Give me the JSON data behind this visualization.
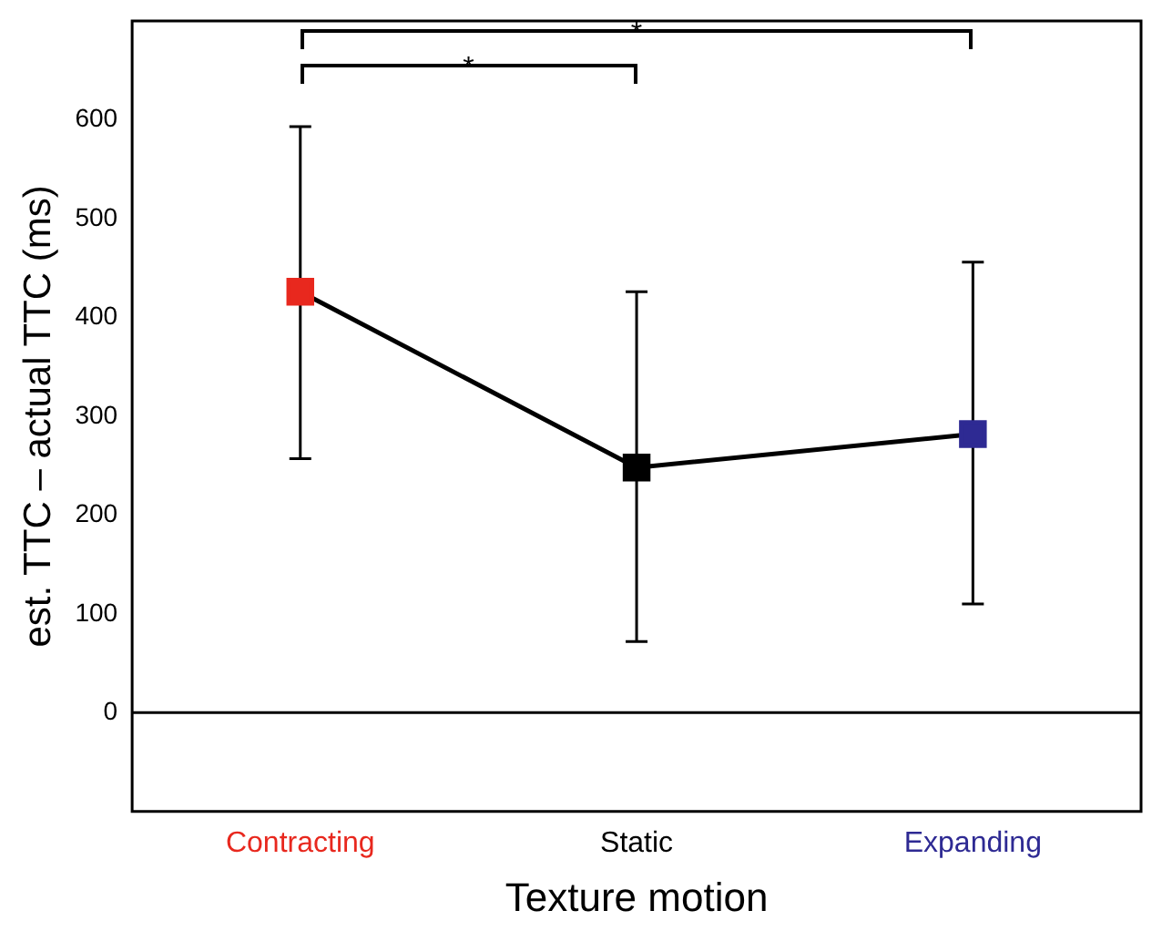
{
  "chart_data": {
    "type": "line",
    "xlabel": "Texture motion",
    "ylabel": "est. TTC – actual TTC (ms)",
    "categories": [
      "Contracting",
      "Static",
      "Expanding"
    ],
    "series": [
      {
        "color": "#000000",
        "colors": [
          "#e8281e",
          "#000000",
          "#2e2a93"
        ],
        "values": [
          426,
          248,
          282
        ],
        "errors": [
          [
            257,
            593
          ],
          [
            72,
            426
          ],
          [
            110,
            456
          ]
        ]
      }
    ],
    "ylim": [
      -100,
      700
    ],
    "yticks": [
      0,
      100,
      200,
      300,
      400,
      500,
      600
    ],
    "ref_lines": [
      {
        "axis": "y",
        "value": 0,
        "color": "#000000"
      }
    ],
    "annotations": [
      "*",
      "*"
    ],
    "marker": "square",
    "line_style": "solid",
    "grid": false,
    "legend": false
  }
}
